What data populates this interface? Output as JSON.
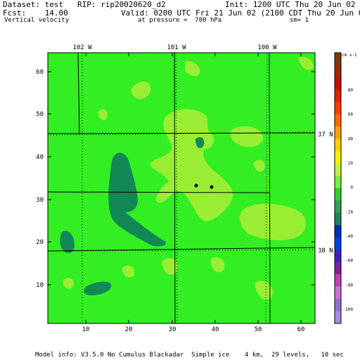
{
  "header": {
    "dataset": "Dataset: test   RIP: rip20020620_d2",
    "init": "Init: 1200 UTC Thu 20 Jun 02",
    "fcst": "Fcst:    14.00",
    "valid": "Valid: 0200 UTC Fri 21 Jun 02 (2100 CDT Thu 20 Jun 02)",
    "field": "Vertical velocity",
    "pressure": "at pressure =  700 hPa",
    "smoothing": "sm= 1"
  },
  "axes": {
    "x_ticks": [
      "10",
      "20",
      "30",
      "40",
      "50",
      "60"
    ],
    "y_ticks": [
      "10",
      "20",
      "30",
      "40",
      "50",
      "60"
    ],
    "x_range": [
      1,
      64
    ],
    "y_range": [
      1,
      64
    ]
  },
  "geo_labels": {
    "lon": [
      "102 W",
      "101 W",
      "100 W"
    ],
    "lat": [
      "37 N",
      "38 N"
    ]
  },
  "colorbar": {
    "unit": "cm s-1",
    "labels": [
      "80",
      "60",
      "40",
      "20",
      "0",
      "-20",
      "-40",
      "-60",
      "-80",
      "-100"
    ],
    "colors": [
      "#7a3a10",
      "#9a2a00",
      "#c01000",
      "#e02000",
      "#ff3a00",
      "#ff6a00",
      "#ffa000",
      "#ffd000",
      "#f8f000",
      "#c8f040",
      "#78f040",
      "#30d030",
      "#30a060",
      "#208060",
      "#0030b0",
      "#0040e0",
      "#4020c0",
      "#8020a0",
      "#c040b0",
      "#d070d0",
      "#9070d0",
      "#a090e0"
    ]
  },
  "colors": {
    "background_field": "#33ee22",
    "light_field": "#99ee33",
    "dark_field": "#118855"
  },
  "footer": "Model info: V3.5.0 No Cumulus Blackadar  Simple ice    4 km,  29 levels,   10 sec"
}
